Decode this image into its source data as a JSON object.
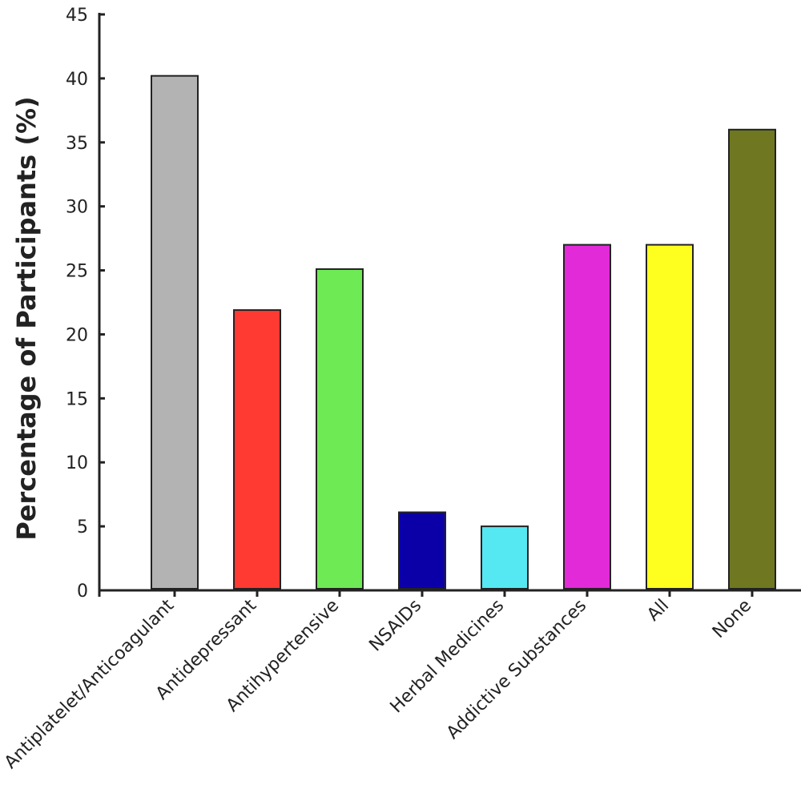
{
  "chart_data": {
    "type": "bar",
    "title": "",
    "xlabel": "",
    "ylabel": "Percentage of Participants (%)",
    "ylim": [
      0,
      45
    ],
    "yticks": [
      0,
      5,
      10,
      15,
      20,
      25,
      30,
      35,
      40,
      45
    ],
    "categories": [
      "Antiplatelet/Anticoagulant",
      "Antidepressant",
      "Antihypertensive",
      "NSAIDs",
      "Herbal Medicines",
      "Addictive Substances",
      "All",
      "None"
    ],
    "values": [
      40.2,
      21.9,
      25.1,
      6.1,
      5.0,
      27.0,
      27.0,
      36.0
    ],
    "colors": [
      "#b3b3b3",
      "#ff3a33",
      "#6eea55",
      "#0b00a8",
      "#55e8f2",
      "#e22ad8",
      "#ffff1f",
      "#6f7720"
    ],
    "grid": false,
    "legend": "none"
  }
}
